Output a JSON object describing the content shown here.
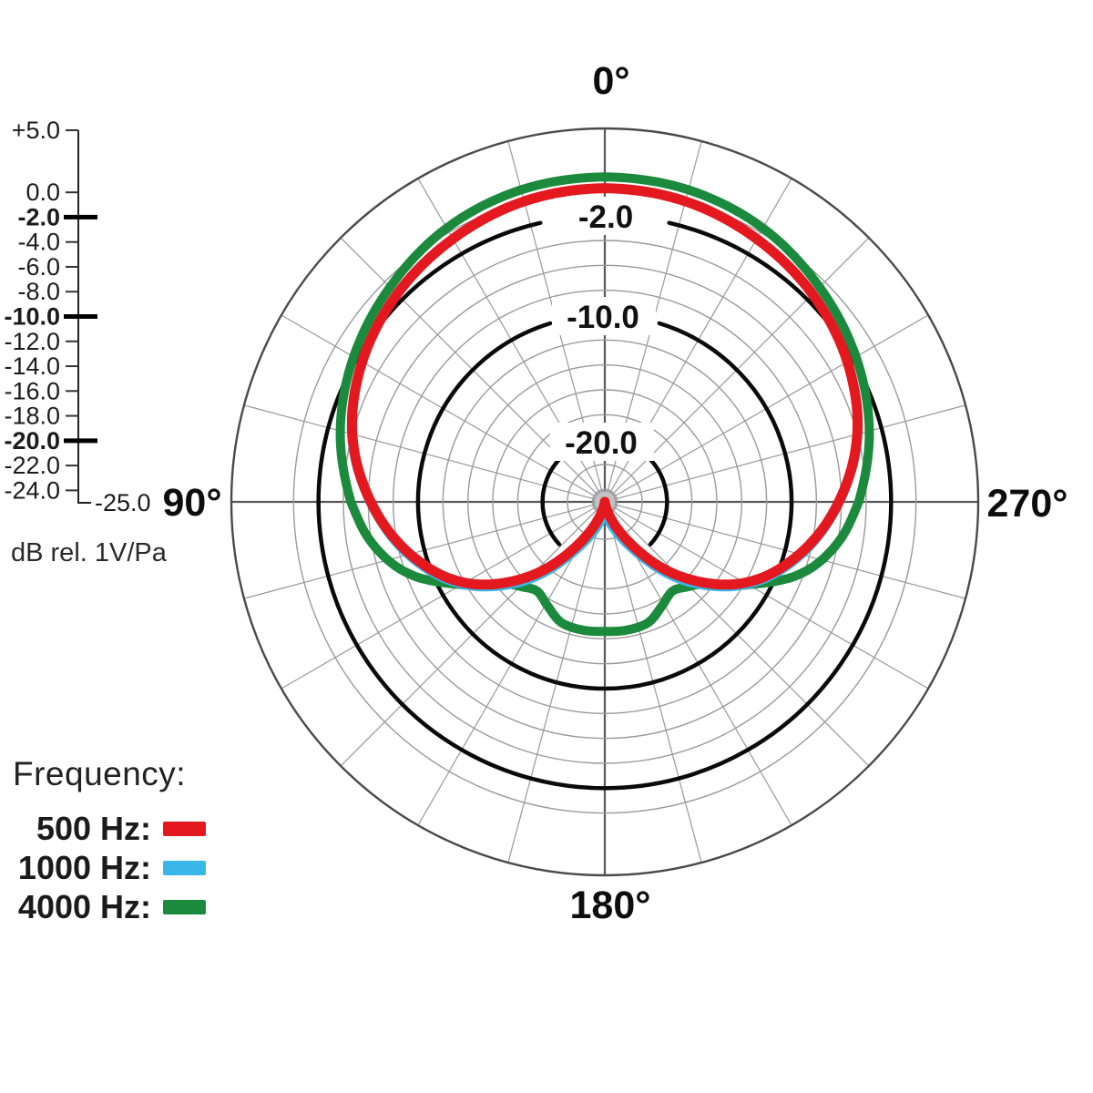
{
  "scale": {
    "unit_label": "dB rel. 1V/Pa",
    "end_label": "-25.0",
    "ticks": [
      {
        "label": "+5.0",
        "db": 5,
        "bold": false
      },
      {
        "label": "0.0",
        "db": 0,
        "bold": false
      },
      {
        "label": "-2.0",
        "db": -2,
        "bold": true
      },
      {
        "label": "-4.0",
        "db": -4,
        "bold": false
      },
      {
        "label": "-6.0",
        "db": -6,
        "bold": false
      },
      {
        "label": "-8.0",
        "db": -8,
        "bold": false
      },
      {
        "label": "-10.0",
        "db": -10,
        "bold": true
      },
      {
        "label": "-12.0",
        "db": -12,
        "bold": false
      },
      {
        "label": "-14.0",
        "db": -14,
        "bold": false
      },
      {
        "label": "-16.0",
        "db": -16,
        "bold": false
      },
      {
        "label": "-18.0",
        "db": -18,
        "bold": false
      },
      {
        "label": "-20.0",
        "db": -20,
        "bold": true
      },
      {
        "label": "-22.0",
        "db": -22,
        "bold": false
      },
      {
        "label": "-24.0",
        "db": -24,
        "bold": false
      }
    ]
  },
  "polar": {
    "angle_labels": [
      {
        "text": "0°"
      },
      {
        "text": "90°"
      },
      {
        "text": "270°"
      },
      {
        "text": "180°"
      }
    ],
    "ring_labels": [
      {
        "text": "-2.0"
      },
      {
        "text": "-10.0"
      },
      {
        "text": "-20.0"
      }
    ]
  },
  "legend": {
    "title": "Frequency:",
    "items": [
      {
        "label": "500 Hz:",
        "color": "#e3191f"
      },
      {
        "label": "1000 Hz:",
        "color": "#38b7e8"
      },
      {
        "label": "4000 Hz:",
        "color": "#1b8a3d"
      }
    ]
  },
  "chart_data": {
    "type": "polar-line",
    "units": "dB rel. 1V/Pa",
    "radial_axis": {
      "outer_db": 5,
      "center_db": -25,
      "ring_step_db": 2,
      "bold_rings_db": [
        -2,
        -10,
        -20
      ]
    },
    "angle_axis": {
      "spoke_step_deg": 15,
      "labeled_angles_deg": [
        0,
        90,
        270,
        180
      ]
    },
    "series": [
      {
        "name": "500 Hz",
        "color": "#e3191f",
        "stroke_width": 11,
        "z": 3,
        "symmetric": true,
        "angles_deg": [
          0,
          15,
          30,
          45,
          60,
          75,
          90,
          105,
          120,
          135,
          150,
          165,
          180
        ],
        "db": [
          0.2,
          0.0,
          -0.6,
          -1.4,
          -2.5,
          -4.0,
          -6.2,
          -8.8,
          -12.0,
          -16.6,
          -21.5,
          -24.3,
          -25.0
        ]
      },
      {
        "name": "1000 Hz",
        "color": "#38b7e8",
        "stroke_width": 9,
        "z": 2,
        "symmetric": true,
        "angles_deg": [
          0,
          15,
          30,
          45,
          60,
          75,
          90,
          105,
          120,
          135,
          150,
          165,
          180
        ],
        "db": [
          0.2,
          0.0,
          -0.55,
          -1.35,
          -2.45,
          -3.9,
          -6.1,
          -8.6,
          -11.7,
          -16.0,
          -20.6,
          -23.0,
          -24.1
        ]
      },
      {
        "name": "4000 Hz",
        "color": "#1b8a3d",
        "stroke_width": 10,
        "z": 1,
        "symmetric": true,
        "angles_deg": [
          0,
          15,
          30,
          45,
          60,
          75,
          90,
          100,
          110,
          121,
          129,
          136,
          143,
          152,
          160,
          170,
          180
        ],
        "db": [
          1.1,
          0.95,
          0.4,
          -0.6,
          -1.7,
          -3.0,
          -4.6,
          -6.0,
          -8.2,
          -12.0,
          -14.5,
          -15.5,
          -16.0,
          -15.4,
          -14.7,
          -14.55,
          -14.6
        ]
      }
    ]
  }
}
